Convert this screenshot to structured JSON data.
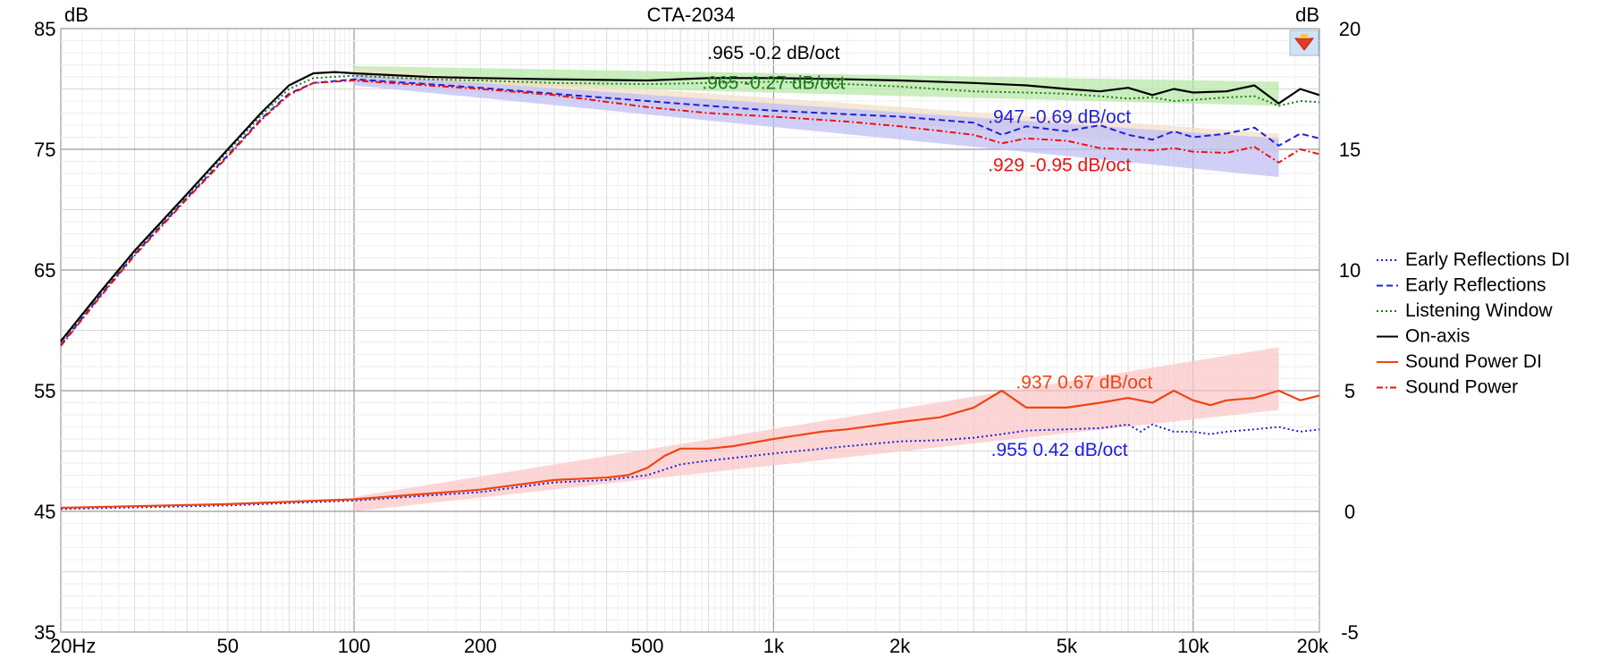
{
  "chart_data": {
    "type": "line",
    "title": "CTA-2034",
    "left_axis_unit": "dB",
    "right_axis_unit": "dB",
    "x_scale": "log",
    "xlim": [
      20,
      20000
    ],
    "ylim_left": [
      35,
      85
    ],
    "ylim_right": [
      -5,
      20
    ],
    "grid": true,
    "legend_position": "right",
    "x_tick_labels": [
      {
        "v": 20,
        "label": "20Hz"
      },
      {
        "v": 50,
        "label": "50"
      },
      {
        "v": 100,
        "label": "100"
      },
      {
        "v": 200,
        "label": "200"
      },
      {
        "v": 500,
        "label": "500"
      },
      {
        "v": 1000,
        "label": "1k"
      },
      {
        "v": 2000,
        "label": "2k"
      },
      {
        "v": 5000,
        "label": "5k"
      },
      {
        "v": 10000,
        "label": "10k"
      },
      {
        "v": 20000,
        "label": "20k"
      }
    ],
    "y_left_tick_labels": [
      {
        "v": 85,
        "label": "85"
      },
      {
        "v": 75,
        "label": "75"
      },
      {
        "v": 65,
        "label": "65"
      },
      {
        "v": 55,
        "label": "55"
      },
      {
        "v": 45,
        "label": "45"
      },
      {
        "v": 35,
        "label": "35"
      }
    ],
    "y_right_tick_labels": [
      {
        "v": 20,
        "label": "20"
      },
      {
        "v": 15,
        "label": "15"
      },
      {
        "v": 10,
        "label": "10"
      },
      {
        "v": 5,
        "label": "5"
      },
      {
        "v": 0,
        "label": "0"
      },
      {
        "v": -5,
        "label": "-5"
      }
    ],
    "series": [
      {
        "name": "Early Reflections DI",
        "color": "#1f1fdd",
        "dash": "dots",
        "axis": "right",
        "x": [
          20,
          50,
          100,
          200,
          300,
          400,
          500,
          600,
          700,
          1000,
          1500,
          2000,
          2500,
          3000,
          3500,
          4000,
          5000,
          6000,
          7000,
          7500,
          8000,
          9000,
          10000,
          11000,
          12000,
          14000,
          16000,
          18000,
          20000
        ],
        "y": [
          0.1,
          0.25,
          0.45,
          0.8,
          1.2,
          1.3,
          1.5,
          1.95,
          2.1,
          2.4,
          2.7,
          2.9,
          2.95,
          3.05,
          3.2,
          3.35,
          3.4,
          3.45,
          3.6,
          3.3,
          3.6,
          3.3,
          3.3,
          3.2,
          3.3,
          3.4,
          3.5,
          3.3,
          3.4
        ]
      },
      {
        "name": "Early Reflections",
        "color": "#1f1fdd",
        "dash": "dashes",
        "axis": "left",
        "x": [
          20,
          25,
          30,
          40,
          50,
          60,
          70,
          80,
          100,
          150,
          200,
          300,
          500,
          700,
          1000,
          1500,
          2000,
          3000,
          3500,
          4000,
          5000,
          6000,
          7000,
          8000,
          9000,
          10000,
          12000,
          14000,
          16000,
          18000,
          20000
        ],
        "y": [
          58.8,
          63,
          66.3,
          71,
          74.5,
          77.5,
          79.6,
          80.5,
          80.8,
          80.4,
          80.1,
          79.6,
          79.0,
          78.6,
          78.2,
          77.9,
          77.7,
          77.2,
          76.2,
          76.9,
          76.5,
          77.0,
          76.2,
          75.8,
          76.5,
          76.0,
          76.3,
          76.8,
          75.3,
          76.3,
          75.9
        ]
      },
      {
        "name": "Listening Window",
        "color": "#1a7a1a",
        "dash": "dots",
        "axis": "left",
        "x": [
          20,
          25,
          30,
          40,
          50,
          60,
          70,
          80,
          100,
          150,
          200,
          300,
          500,
          700,
          1000,
          1500,
          2000,
          3000,
          4000,
          5000,
          6000,
          7000,
          8000,
          9000,
          10000,
          12000,
          14000,
          16000,
          18000,
          20000
        ],
        "y": [
          59.0,
          63.2,
          66.5,
          71.2,
          74.8,
          77.8,
          80.0,
          80.9,
          81.1,
          80.8,
          80.7,
          80.5,
          80.4,
          80.5,
          80.6,
          80.4,
          80.2,
          79.8,
          79.7,
          79.6,
          79.4,
          79.2,
          79.3,
          79.0,
          79.1,
          79.3,
          79.4,
          78.6,
          79.0,
          78.9
        ]
      },
      {
        "name": "On-axis",
        "color": "#000000",
        "dash": "solid",
        "axis": "left",
        "x": [
          20,
          25,
          30,
          40,
          50,
          60,
          70,
          80,
          90,
          100,
          150,
          200,
          300,
          500,
          700,
          1000,
          1500,
          2000,
          3000,
          4000,
          5000,
          6000,
          7000,
          8000,
          9000,
          10000,
          12000,
          14000,
          16000,
          18000,
          20000
        ],
        "y": [
          59.1,
          63.3,
          66.6,
          71.3,
          75.0,
          78.0,
          80.3,
          81.3,
          81.4,
          81.3,
          81.0,
          80.9,
          80.8,
          80.7,
          80.9,
          80.9,
          80.8,
          80.7,
          80.5,
          80.3,
          80.0,
          79.8,
          80.1,
          79.5,
          80.0,
          79.7,
          79.8,
          80.3,
          78.8,
          80.0,
          79.5
        ]
      },
      {
        "name": "Sound Power DI",
        "color": "#ee4411",
        "dash": "solid",
        "axis": "right",
        "x": [
          20,
          50,
          100,
          200,
          300,
          400,
          450,
          500,
          550,
          600,
          700,
          800,
          1000,
          1300,
          1500,
          2000,
          2500,
          3000,
          3500,
          4000,
          5000,
          6000,
          7000,
          8000,
          9000,
          10000,
          11000,
          12000,
          14000,
          16000,
          18000,
          20000
        ],
        "y": [
          0.15,
          0.3,
          0.5,
          0.9,
          1.3,
          1.4,
          1.5,
          1.8,
          2.3,
          2.6,
          2.6,
          2.7,
          3.0,
          3.3,
          3.4,
          3.7,
          3.9,
          4.3,
          5.0,
          4.3,
          4.3,
          4.5,
          4.7,
          4.5,
          5.0,
          4.6,
          4.4,
          4.6,
          4.7,
          5.0,
          4.6,
          4.8
        ]
      },
      {
        "name": "Sound Power",
        "color": "#ee1111",
        "dash": "dashdot",
        "axis": "left",
        "x": [
          20,
          25,
          30,
          40,
          50,
          60,
          70,
          80,
          100,
          150,
          200,
          300,
          500,
          700,
          1000,
          1500,
          2000,
          3000,
          3500,
          4000,
          5000,
          6000,
          7000,
          8000,
          9000,
          10000,
          12000,
          14000,
          16000,
          18000,
          20000
        ],
        "y": [
          58.7,
          62.9,
          66.2,
          70.9,
          74.4,
          77.4,
          79.5,
          80.5,
          80.7,
          80.3,
          80.0,
          79.5,
          78.5,
          78.0,
          77.7,
          77.3,
          76.9,
          76.2,
          75.5,
          75.9,
          75.7,
          75.1,
          75.0,
          74.9,
          75.1,
          74.8,
          74.7,
          75.2,
          73.9,
          75.0,
          74.6
        ]
      }
    ],
    "trend_bands": [
      {
        "series": "Listening Window",
        "axis": "left",
        "x": [
          100,
          16000
        ],
        "upper": [
          81.9,
          80.6
        ],
        "lower": [
          80.6,
          78.6
        ],
        "color": "#b8e8a8"
      },
      {
        "series": "Early Reflections",
        "axis": "left",
        "x": [
          100,
          16000
        ],
        "upper": [
          81.7,
          76.3
        ],
        "lower": [
          80.5,
          74.7
        ],
        "color": "#f3dfc8"
      },
      {
        "series": "Sound Power",
        "axis": "left",
        "x": [
          100,
          16000
        ],
        "upper": [
          81.2,
          75.9
        ],
        "lower": [
          80.3,
          72.7
        ],
        "color": "#c0c0f4"
      },
      {
        "series": "Sound Power DI",
        "axis": "right",
        "x": [
          100,
          16000
        ],
        "upper": [
          0.6,
          6.8
        ],
        "lower": [
          0.0,
          4.2
        ],
        "color": "#fbc8c8"
      }
    ],
    "annotations": [
      {
        "text": ".965  -0.2 dB/oct",
        "color": "#000000",
        "x": 1000,
        "y": 82.5,
        "axis": "left",
        "anchor": "middle"
      },
      {
        "text": ".965  -0.27 dB/oct",
        "color": "#1a7a1a",
        "x": 1000,
        "y": 80.0,
        "axis": "left",
        "anchor": "middle"
      },
      {
        "text": ".947  -0.69 dB/oct",
        "color": "#1f1fdd",
        "x": 4800,
        "y": 77.2,
        "axis": "left",
        "anchor": "middle"
      },
      {
        "text": ".929  -0.95 dB/oct",
        "color": "#ee1111",
        "x": 4800,
        "y": 73.2,
        "axis": "left",
        "anchor": "middle"
      },
      {
        "text": ".937  0.67 dB/oct",
        "color": "#ee4411",
        "x": 5500,
        "y": 5.1,
        "axis": "right",
        "anchor": "middle"
      },
      {
        "text": ".955  0.42 dB/oct",
        "color": "#1f1fdd",
        "x": 4800,
        "y": 2.3,
        "axis": "right",
        "anchor": "middle"
      }
    ]
  }
}
